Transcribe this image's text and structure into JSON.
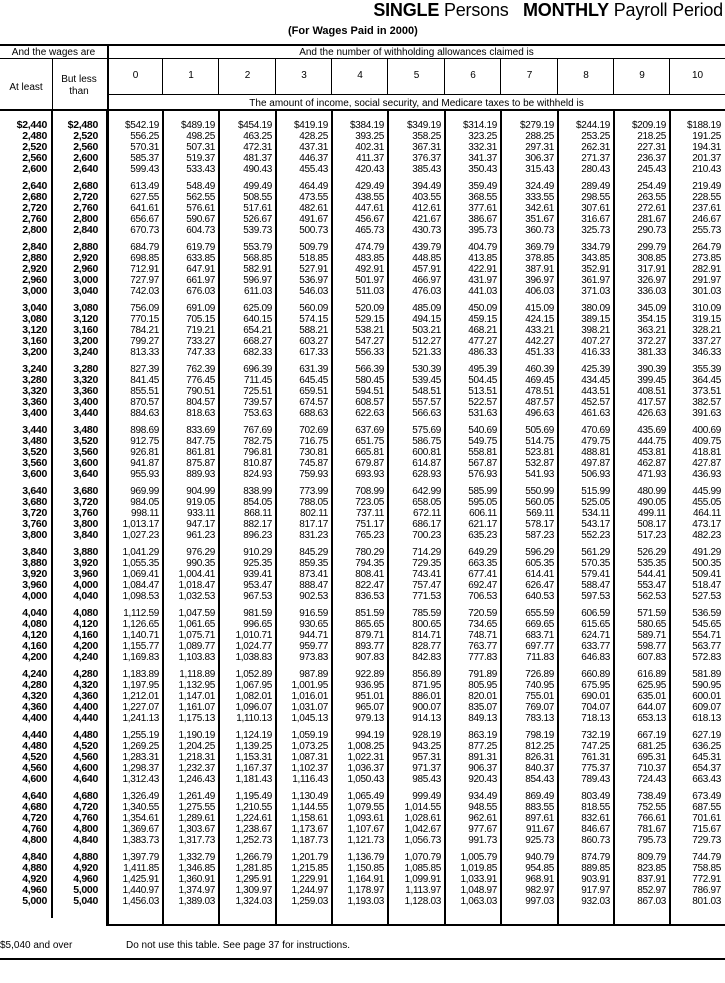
{
  "header": {
    "title_bold1": "SINGLE",
    "title_text1": "Persons",
    "title_bold2": "MONTHLY",
    "title_text2": "Payroll Period",
    "subtitle": "(For Wages Paid in 2000)"
  },
  "table": {
    "wages_header": "And the wages are",
    "allowances_header": "And the number of withholding allowances claimed is",
    "at_least": "At least",
    "but_less_than": "But less than",
    "allowances": [
      "0",
      "1",
      "2",
      "3",
      "4",
      "5",
      "6",
      "7",
      "8",
      "9",
      "10"
    ],
    "amount_header": "The amount of income, social security, and Medicare taxes to be withheld is",
    "rows": [
      [
        "$2,440",
        "$2,480",
        "$542.19",
        "$489.19",
        "$454.19",
        "$419.19",
        "$384.19",
        "$349.19",
        "$314.19",
        "$279.19",
        "$244.19",
        "$209.19",
        "$188.19"
      ],
      [
        "2,480",
        "2,520",
        "556.25",
        "498.25",
        "463.25",
        "428.25",
        "393.25",
        "358.25",
        "323.25",
        "288.25",
        "253.25",
        "218.25",
        "191.25"
      ],
      [
        "2,520",
        "2,560",
        "570.31",
        "507.31",
        "472.31",
        "437.31",
        "402.31",
        "367.31",
        "332.31",
        "297.31",
        "262.31",
        "227.31",
        "194.31"
      ],
      [
        "2,560",
        "2,600",
        "585.37",
        "519.37",
        "481.37",
        "446.37",
        "411.37",
        "376.37",
        "341.37",
        "306.37",
        "271.37",
        "236.37",
        "201.37"
      ],
      [
        "2,600",
        "2,640",
        "599.43",
        "533.43",
        "490.43",
        "455.43",
        "420.43",
        "385.43",
        "350.43",
        "315.43",
        "280.43",
        "245.43",
        "210.43"
      ],
      [
        "2,640",
        "2,680",
        "613.49",
        "548.49",
        "499.49",
        "464.49",
        "429.49",
        "394.49",
        "359.49",
        "324.49",
        "289.49",
        "254.49",
        "219.49"
      ],
      [
        "2,680",
        "2,720",
        "627.55",
        "562.55",
        "508.55",
        "473.55",
        "438.55",
        "403.55",
        "368.55",
        "333.55",
        "298.55",
        "263.55",
        "228.55"
      ],
      [
        "2,720",
        "2,760",
        "641.61",
        "576.61",
        "517.61",
        "482.61",
        "447.61",
        "412.61",
        "377.61",
        "342.61",
        "307.61",
        "272.61",
        "237.61"
      ],
      [
        "2,760",
        "2,800",
        "656.67",
        "590.67",
        "526.67",
        "491.67",
        "456.67",
        "421.67",
        "386.67",
        "351.67",
        "316.67",
        "281.67",
        "246.67"
      ],
      [
        "2,800",
        "2,840",
        "670.73",
        "604.73",
        "539.73",
        "500.73",
        "465.73",
        "430.73",
        "395.73",
        "360.73",
        "325.73",
        "290.73",
        "255.73"
      ],
      [
        "2,840",
        "2,880",
        "684.79",
        "619.79",
        "553.79",
        "509.79",
        "474.79",
        "439.79",
        "404.79",
        "369.79",
        "334.79",
        "299.79",
        "264.79"
      ],
      [
        "2,880",
        "2,920",
        "698.85",
        "633.85",
        "568.85",
        "518.85",
        "483.85",
        "448.85",
        "413.85",
        "378.85",
        "343.85",
        "308.85",
        "273.85"
      ],
      [
        "2,920",
        "2,960",
        "712.91",
        "647.91",
        "582.91",
        "527.91",
        "492.91",
        "457.91",
        "422.91",
        "387.91",
        "352.91",
        "317.91",
        "282.91"
      ],
      [
        "2,960",
        "3,000",
        "727.97",
        "661.97",
        "596.97",
        "536.97",
        "501.97",
        "466.97",
        "431.97",
        "396.97",
        "361.97",
        "326.97",
        "291.97"
      ],
      [
        "3,000",
        "3,040",
        "742.03",
        "676.03",
        "611.03",
        "546.03",
        "511.03",
        "476.03",
        "441.03",
        "406.03",
        "371.03",
        "336.03",
        "301.03"
      ],
      [
        "3,040",
        "3,080",
        "756.09",
        "691.09",
        "625.09",
        "560.09",
        "520.09",
        "485.09",
        "450.09",
        "415.09",
        "380.09",
        "345.09",
        "310.09"
      ],
      [
        "3,080",
        "3,120",
        "770.15",
        "705.15",
        "640.15",
        "574.15",
        "529.15",
        "494.15",
        "459.15",
        "424.15",
        "389.15",
        "354.15",
        "319.15"
      ],
      [
        "3,120",
        "3,160",
        "784.21",
        "719.21",
        "654.21",
        "588.21",
        "538.21",
        "503.21",
        "468.21",
        "433.21",
        "398.21",
        "363.21",
        "328.21"
      ],
      [
        "3,160",
        "3,200",
        "799.27",
        "733.27",
        "668.27",
        "603.27",
        "547.27",
        "512.27",
        "477.27",
        "442.27",
        "407.27",
        "372.27",
        "337.27"
      ],
      [
        "3,200",
        "3,240",
        "813.33",
        "747.33",
        "682.33",
        "617.33",
        "556.33",
        "521.33",
        "486.33",
        "451.33",
        "416.33",
        "381.33",
        "346.33"
      ],
      [
        "3,240",
        "3,280",
        "827.39",
        "762.39",
        "696.39",
        "631.39",
        "566.39",
        "530.39",
        "495.39",
        "460.39",
        "425.39",
        "390.39",
        "355.39"
      ],
      [
        "3,280",
        "3,320",
        "841.45",
        "776.45",
        "711.45",
        "645.45",
        "580.45",
        "539.45",
        "504.45",
        "469.45",
        "434.45",
        "399.45",
        "364.45"
      ],
      [
        "3,320",
        "3,360",
        "855.51",
        "790.51",
        "725.51",
        "659.51",
        "594.51",
        "548.51",
        "513.51",
        "478.51",
        "443.51",
        "408.51",
        "373.51"
      ],
      [
        "3,360",
        "3,400",
        "870.57",
        "804.57",
        "739.57",
        "674.57",
        "608.57",
        "557.57",
        "522.57",
        "487.57",
        "452.57",
        "417.57",
        "382.57"
      ],
      [
        "3,400",
        "3,440",
        "884.63",
        "818.63",
        "753.63",
        "688.63",
        "622.63",
        "566.63",
        "531.63",
        "496.63",
        "461.63",
        "426.63",
        "391.63"
      ],
      [
        "3,440",
        "3,480",
        "898.69",
        "833.69",
        "767.69",
        "702.69",
        "637.69",
        "575.69",
        "540.69",
        "505.69",
        "470.69",
        "435.69",
        "400.69"
      ],
      [
        "3,480",
        "3,520",
        "912.75",
        "847.75",
        "782.75",
        "716.75",
        "651.75",
        "586.75",
        "549.75",
        "514.75",
        "479.75",
        "444.75",
        "409.75"
      ],
      [
        "3,520",
        "3,560",
        "926.81",
        "861.81",
        "796.81",
        "730.81",
        "665.81",
        "600.81",
        "558.81",
        "523.81",
        "488.81",
        "453.81",
        "418.81"
      ],
      [
        "3,560",
        "3,600",
        "941.87",
        "875.87",
        "810.87",
        "745.87",
        "679.87",
        "614.87",
        "567.87",
        "532.87",
        "497.87",
        "462.87",
        "427.87"
      ],
      [
        "3,600",
        "3,640",
        "955.93",
        "889.93",
        "824.93",
        "759.93",
        "693.93",
        "628.93",
        "576.93",
        "541.93",
        "506.93",
        "471.93",
        "436.93"
      ],
      [
        "3,640",
        "3,680",
        "969.99",
        "904.99",
        "838.99",
        "773.99",
        "708.99",
        "642.99",
        "585.99",
        "550.99",
        "515.99",
        "480.99",
        "445.99"
      ],
      [
        "3,680",
        "3,720",
        "984.05",
        "919.05",
        "854.05",
        "788.05",
        "723.05",
        "658.05",
        "595.05",
        "560.05",
        "525.05",
        "490.05",
        "455.05"
      ],
      [
        "3,720",
        "3,760",
        "998.11",
        "933.11",
        "868.11",
        "802.11",
        "737.11",
        "672.11",
        "606.11",
        "569.11",
        "534.11",
        "499.11",
        "464.11"
      ],
      [
        "3,760",
        "3,800",
        "1,013.17",
        "947.17",
        "882.17",
        "817.17",
        "751.17",
        "686.17",
        "621.17",
        "578.17",
        "543.17",
        "508.17",
        "473.17"
      ],
      [
        "3,800",
        "3,840",
        "1,027.23",
        "961.23",
        "896.23",
        "831.23",
        "765.23",
        "700.23",
        "635.23",
        "587.23",
        "552.23",
        "517.23",
        "482.23"
      ],
      [
        "3,840",
        "3,880",
        "1,041.29",
        "976.29",
        "910.29",
        "845.29",
        "780.29",
        "714.29",
        "649.29",
        "596.29",
        "561.29",
        "526.29",
        "491.29"
      ],
      [
        "3,880",
        "3,920",
        "1,055.35",
        "990.35",
        "925.35",
        "859.35",
        "794.35",
        "729.35",
        "663.35",
        "605.35",
        "570.35",
        "535.35",
        "500.35"
      ],
      [
        "3,920",
        "3,960",
        "1,069.41",
        "1,004.41",
        "939.41",
        "873.41",
        "808.41",
        "743.41",
        "677.41",
        "614.41",
        "579.41",
        "544.41",
        "509.41"
      ],
      [
        "3,960",
        "4,000",
        "1,084.47",
        "1,018.47",
        "953.47",
        "888.47",
        "822.47",
        "757.47",
        "692.47",
        "626.47",
        "588.47",
        "553.47",
        "518.47"
      ],
      [
        "4,000",
        "4,040",
        "1,098.53",
        "1,032.53",
        "967.53",
        "902.53",
        "836.53",
        "771.53",
        "706.53",
        "640.53",
        "597.53",
        "562.53",
        "527.53"
      ],
      [
        "4,040",
        "4,080",
        "1,112.59",
        "1,047.59",
        "981.59",
        "916.59",
        "851.59",
        "785.59",
        "720.59",
        "655.59",
        "606.59",
        "571.59",
        "536.59"
      ],
      [
        "4,080",
        "4,120",
        "1,126.65",
        "1,061.65",
        "996.65",
        "930.65",
        "865.65",
        "800.65",
        "734.65",
        "669.65",
        "615.65",
        "580.65",
        "545.65"
      ],
      [
        "4,120",
        "4,160",
        "1,140.71",
        "1,075.71",
        "1,010.71",
        "944.71",
        "879.71",
        "814.71",
        "748.71",
        "683.71",
        "624.71",
        "589.71",
        "554.71"
      ],
      [
        "4,160",
        "4,200",
        "1,155.77",
        "1,089.77",
        "1,024.77",
        "959.77",
        "893.77",
        "828.77",
        "763.77",
        "697.77",
        "633.77",
        "598.77",
        "563.77"
      ],
      [
        "4,200",
        "4,240",
        "1,169.83",
        "1,103.83",
        "1,038.83",
        "973.83",
        "907.83",
        "842.83",
        "777.83",
        "711.83",
        "646.83",
        "607.83",
        "572.83"
      ],
      [
        "4,240",
        "4,280",
        "1,183.89",
        "1,118.89",
        "1,052.89",
        "987.89",
        "922.89",
        "856.89",
        "791.89",
        "726.89",
        "660.89",
        "616.89",
        "581.89"
      ],
      [
        "4,280",
        "4,320",
        "1,197.95",
        "1,132.95",
        "1,067.95",
        "1,001.95",
        "936.95",
        "871.95",
        "805.95",
        "740.95",
        "675.95",
        "625.95",
        "590.95"
      ],
      [
        "4,320",
        "4,360",
        "1,212.01",
        "1,147.01",
        "1,082.01",
        "1,016.01",
        "951.01",
        "886.01",
        "820.01",
        "755.01",
        "690.01",
        "635.01",
        "600.01"
      ],
      [
        "4,360",
        "4,400",
        "1,227.07",
        "1,161.07",
        "1,096.07",
        "1,031.07",
        "965.07",
        "900.07",
        "835.07",
        "769.07",
        "704.07",
        "644.07",
        "609.07"
      ],
      [
        "4,400",
        "4,440",
        "1,241.13",
        "1,175.13",
        "1,110.13",
        "1,045.13",
        "979.13",
        "914.13",
        "849.13",
        "783.13",
        "718.13",
        "653.13",
        "618.13"
      ],
      [
        "4,440",
        "4,480",
        "1,255.19",
        "1,190.19",
        "1,124.19",
        "1,059.19",
        "994.19",
        "928.19",
        "863.19",
        "798.19",
        "732.19",
        "667.19",
        "627.19"
      ],
      [
        "4,480",
        "4,520",
        "1,269.25",
        "1,204.25",
        "1,139.25",
        "1,073.25",
        "1,008.25",
        "943.25",
        "877.25",
        "812.25",
        "747.25",
        "681.25",
        "636.25"
      ],
      [
        "4,520",
        "4,560",
        "1,283.31",
        "1,218.31",
        "1,153.31",
        "1,087.31",
        "1,022.31",
        "957.31",
        "891.31",
        "826.31",
        "761.31",
        "695.31",
        "645.31"
      ],
      [
        "4,560",
        "4,600",
        "1,298.37",
        "1,232.37",
        "1,167.37",
        "1,102.37",
        "1,036.37",
        "971.37",
        "906.37",
        "840.37",
        "775.37",
        "710.37",
        "654.37"
      ],
      [
        "4,600",
        "4,640",
        "1,312.43",
        "1,246.43",
        "1,181.43",
        "1,116.43",
        "1,050.43",
        "985.43",
        "920.43",
        "854.43",
        "789.43",
        "724.43",
        "663.43"
      ],
      [
        "4,640",
        "4,680",
        "1,326.49",
        "1,261.49",
        "1,195.49",
        "1,130.49",
        "1,065.49",
        "999.49",
        "934.49",
        "869.49",
        "803.49",
        "738.49",
        "673.49"
      ],
      [
        "4,680",
        "4,720",
        "1,340.55",
        "1,275.55",
        "1,210.55",
        "1,144.55",
        "1,079.55",
        "1,014.55",
        "948.55",
        "883.55",
        "818.55",
        "752.55",
        "687.55"
      ],
      [
        "4,720",
        "4,760",
        "1,354.61",
        "1,289.61",
        "1,224.61",
        "1,158.61",
        "1,093.61",
        "1,028.61",
        "962.61",
        "897.61",
        "832.61",
        "766.61",
        "701.61"
      ],
      [
        "4,760",
        "4,800",
        "1,369.67",
        "1,303.67",
        "1,238.67",
        "1,173.67",
        "1,107.67",
        "1,042.67",
        "977.67",
        "911.67",
        "846.67",
        "781.67",
        "715.67"
      ],
      [
        "4,800",
        "4,840",
        "1,383.73",
        "1,317.73",
        "1,252.73",
        "1,187.73",
        "1,121.73",
        "1,056.73",
        "991.73",
        "925.73",
        "860.73",
        "795.73",
        "729.73"
      ],
      [
        "4,840",
        "4,880",
        "1,397.79",
        "1,332.79",
        "1,266.79",
        "1,201.79",
        "1,136.79",
        "1,070.79",
        "1,005.79",
        "940.79",
        "874.79",
        "809.79",
        "744.79"
      ],
      [
        "4,880",
        "4,920",
        "1,411.85",
        "1,346.85",
        "1,281.85",
        "1,215.85",
        "1,150.85",
        "1,085.85",
        "1,019.85",
        "954.85",
        "889.85",
        "823.85",
        "758.85"
      ],
      [
        "4,920",
        "4,960",
        "1,425.91",
        "1,360.91",
        "1,295.91",
        "1,229.91",
        "1,164.91",
        "1,099.91",
        "1,033.91",
        "968.91",
        "903.91",
        "837.91",
        "772.91"
      ],
      [
        "4,960",
        "5,000",
        "1,440.97",
        "1,374.97",
        "1,309.97",
        "1,244.97",
        "1,178.97",
        "1,113.97",
        "1,048.97",
        "982.97",
        "917.97",
        "852.97",
        "786.97"
      ],
      [
        "5,000",
        "5,040",
        "1,456.03",
        "1,389.03",
        "1,324.03",
        "1,259.03",
        "1,193.03",
        "1,128.03",
        "1,063.03",
        "997.03",
        "932.03",
        "867.03",
        "801.03"
      ]
    ]
  },
  "footer": {
    "range": "$5,040 and over",
    "note": "Do not use this table. See page 37 for instructions."
  }
}
